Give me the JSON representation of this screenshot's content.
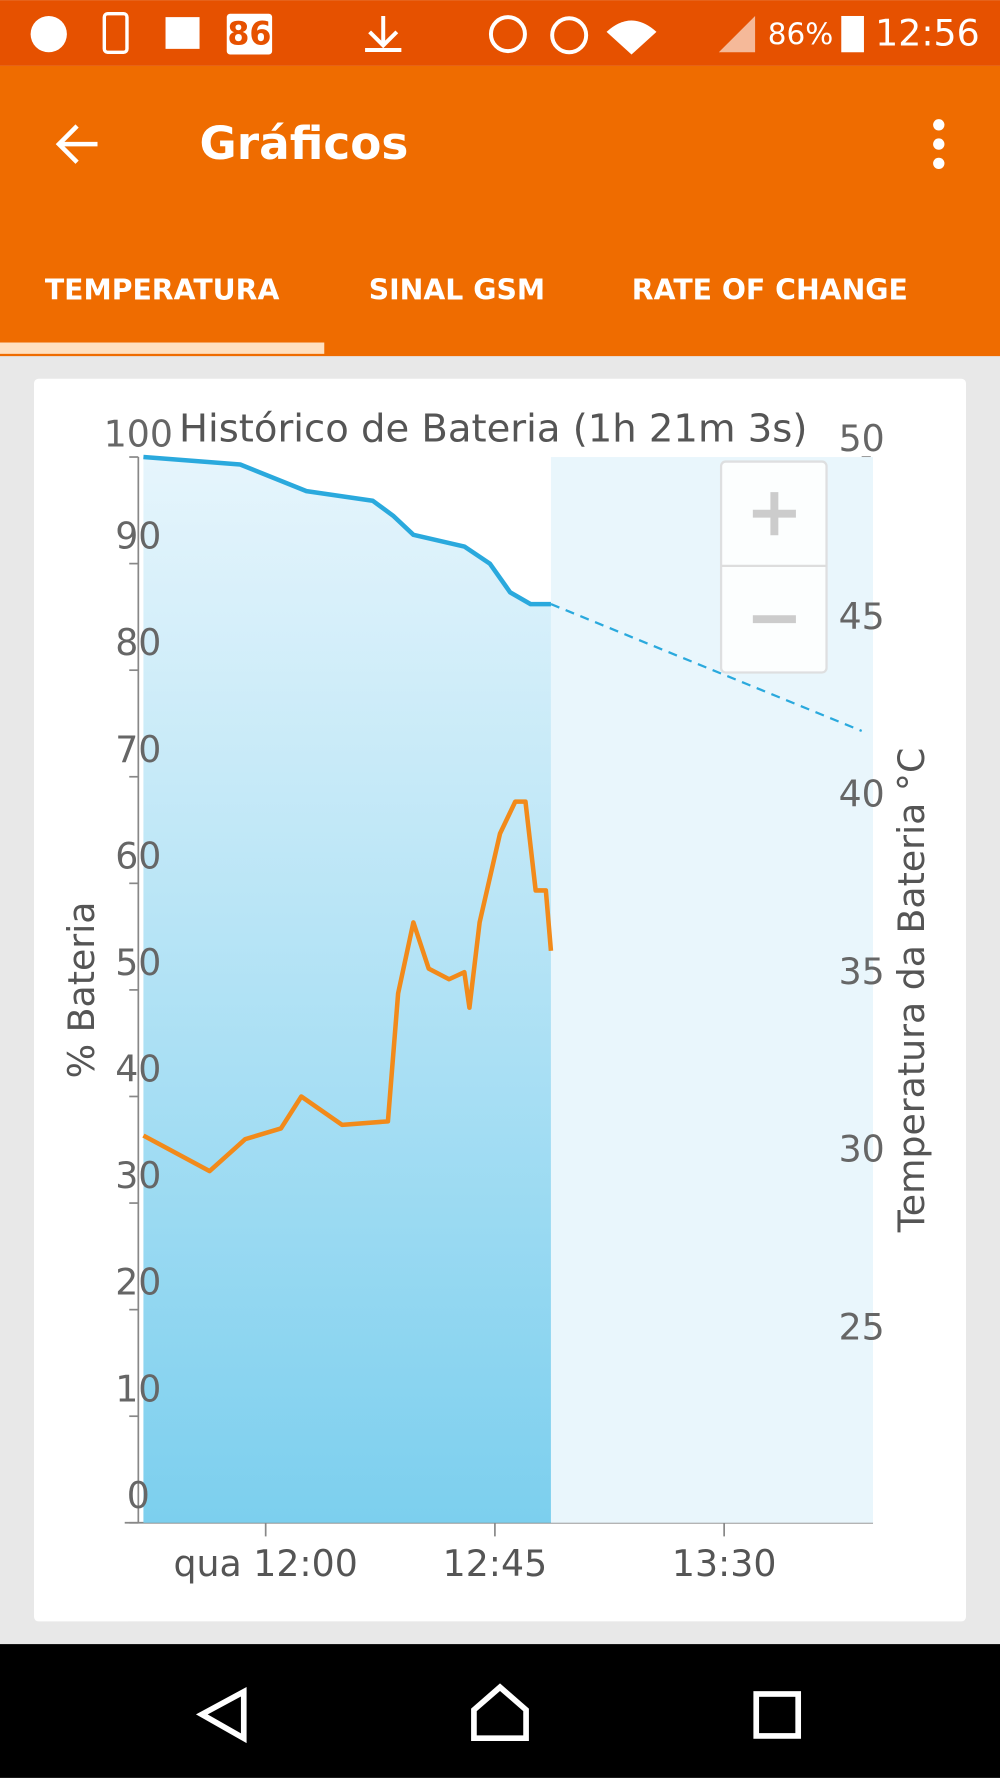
{
  "status_bar": {
    "notification_badge": "86",
    "battery": "86%",
    "time": "12:56"
  },
  "app_bar": {
    "title": "Gráficos"
  },
  "tabs": [
    "TEMPERATURA",
    "SINAL GSM",
    "RATE OF CHANGE"
  ],
  "chart_data": {
    "type": "line",
    "title": "Histórico de Bateria (1h 21m 3s)",
    "y_label": "% Bateria",
    "y2_label": "Temperatura da Bateria °C",
    "xlim": [
      "11:35",
      "13:57"
    ],
    "xticks": [
      {
        "value": "12:00",
        "label": "qua 12:00"
      },
      "12:45",
      "13:30"
    ],
    "ylim": [
      0,
      100
    ],
    "yticks": [
      0,
      10,
      20,
      30,
      40,
      50,
      60,
      70,
      80,
      90,
      100
    ],
    "y2lim": [
      20,
      50
    ],
    "y2ticks": [
      25,
      30,
      35,
      40,
      45,
      50
    ],
    "series": [
      {
        "color": "#2aa9dd",
        "fill": true,
        "x": [
          "11:36",
          "11:55",
          "12:08",
          "12:21",
          "12:25",
          "12:29",
          "12:39",
          "12:44",
          "12:48",
          "12:52",
          "12:56"
        ],
        "values": [
          100,
          99.3,
          96.8,
          95.9,
          94.5,
          92.7,
          91.6,
          90,
          87.3,
          86.2,
          86.2
        ]
      },
      {
        "color": "#2aa9dd",
        "dashed": true,
        "x": [
          "12:56",
          "13:57"
        ],
        "values": [
          86.2,
          74.3
        ]
      },
      {
        "color": "#f28a1a",
        "axis": "y2",
        "x": [
          "11:36",
          "11:49",
          "11:56",
          "12:03",
          "12:07",
          "12:15",
          "12:24",
          "12:26",
          "12:29",
          "12:32",
          "12:36",
          "12:39",
          "12:40",
          "12:42",
          "12:46",
          "12:49",
          "12:51",
          "12:53",
          "12:55",
          "12:56"
        ],
        "values": [
          30.9,
          29.9,
          30.8,
          31.1,
          32.0,
          31.2,
          31.3,
          34.9,
          36.9,
          35.6,
          35.3,
          35.5,
          34.5,
          36.9,
          39.4,
          40.3,
          40.3,
          37.8,
          37.8,
          36.1
        ]
      }
    ]
  }
}
